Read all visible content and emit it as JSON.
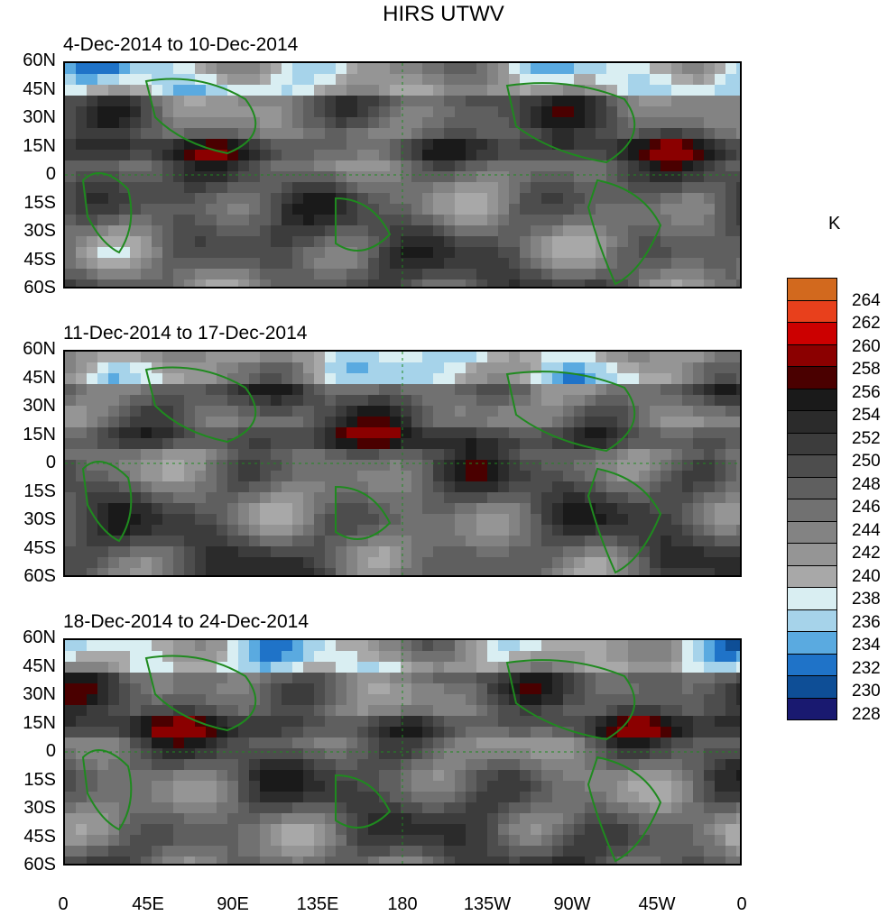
{
  "title": "HIRS UTWV",
  "unit": "K",
  "panels": [
    {
      "period": "4-Dec-2014 to 10-Dec-2014"
    },
    {
      "period": "11-Dec-2014 to 17-Dec-2014"
    },
    {
      "period": "18-Dec-2014 to 24-Dec-2014"
    }
  ],
  "lat_labels": [
    "60N",
    "45N",
    "30N",
    "15N",
    "0",
    "15S",
    "30S",
    "45S",
    "60S"
  ],
  "lon_labels": [
    "0",
    "45E",
    "90E",
    "135E",
    "180",
    "135W",
    "90W",
    "45W",
    "0"
  ],
  "legend": {
    "labels": [
      "264",
      "262",
      "260",
      "258",
      "256",
      "254",
      "252",
      "250",
      "248",
      "246",
      "244",
      "242",
      "240",
      "238",
      "236",
      "234",
      "232",
      "230",
      "228"
    ],
    "colors": [
      "#d2691e",
      "#e8401c",
      "#cc0000",
      "#8b0000",
      "#4a0000",
      "#1a1a1a",
      "#2b2b2b",
      "#3c3c3c",
      "#4d4d4d",
      "#5f5f5f",
      "#717171",
      "#838383",
      "#959595",
      "#a8a8a8",
      "#d9eef2",
      "#a6d3ea",
      "#5aaae0",
      "#1f73c8",
      "#0e4e96",
      "#191970"
    ]
  }
}
